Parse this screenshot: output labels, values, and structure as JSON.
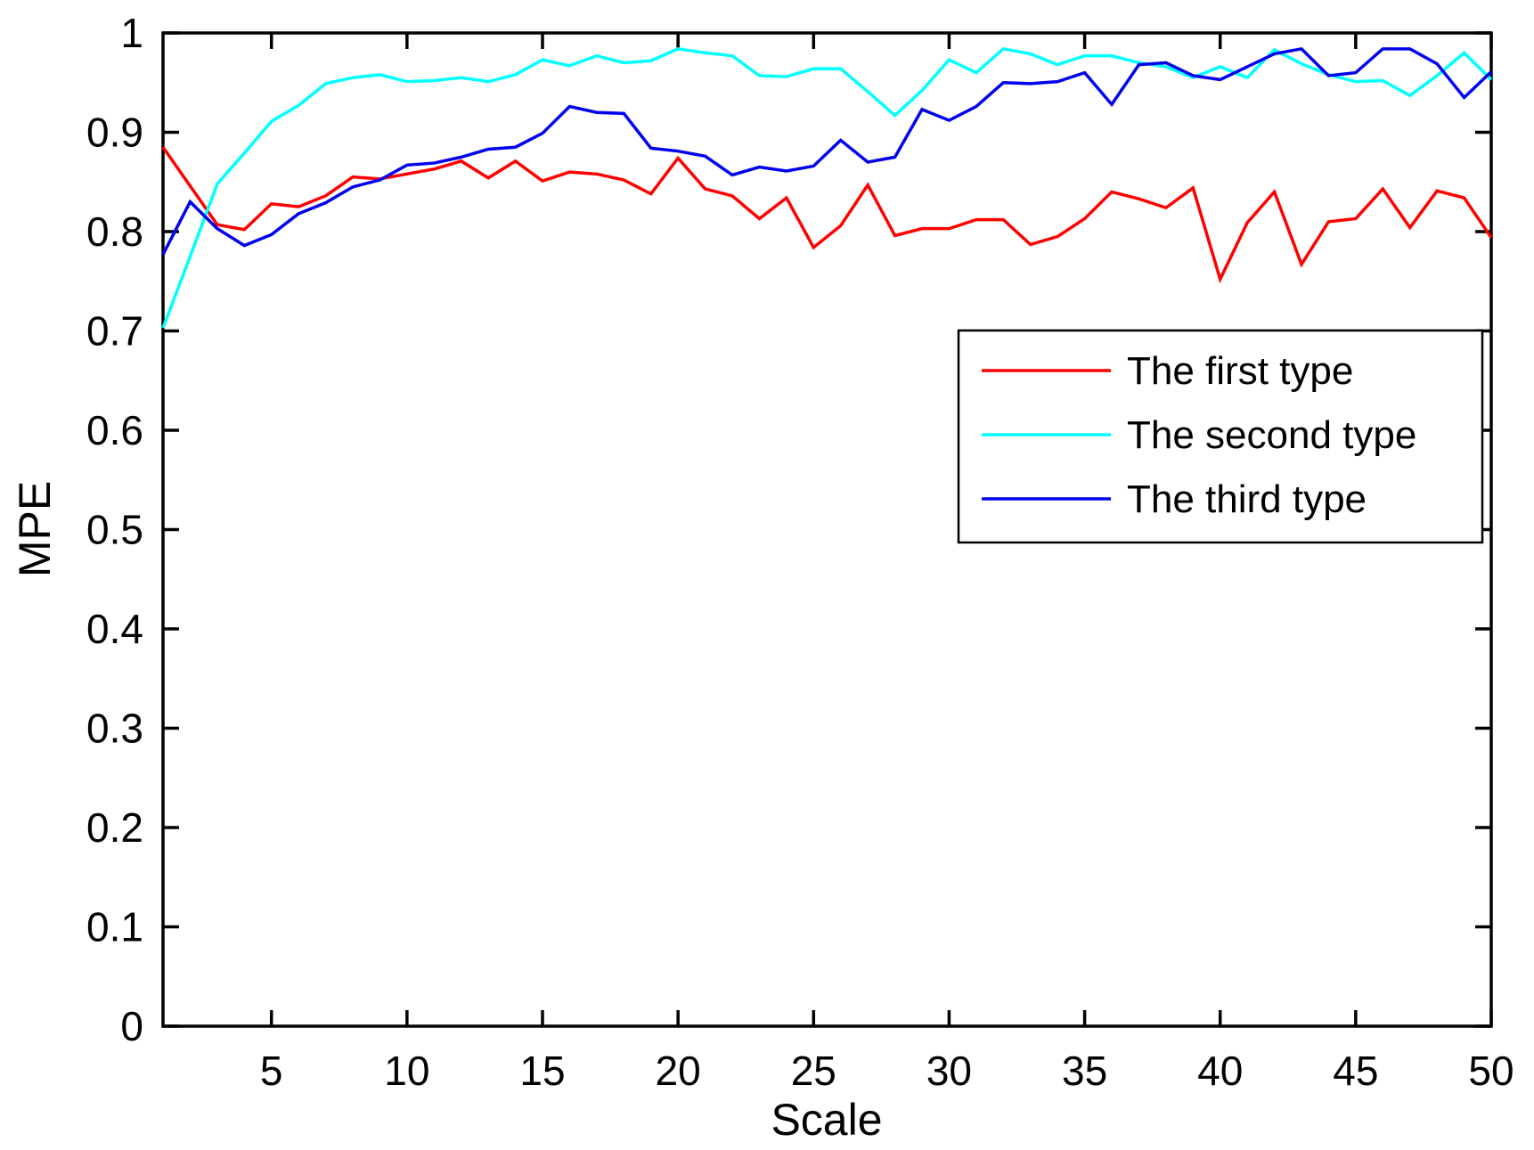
{
  "chart_data": {
    "type": "line",
    "title": "",
    "xlabel": "Scale",
    "ylabel": "MPE",
    "xlim": [
      1,
      50
    ],
    "ylim": [
      0,
      1
    ],
    "grid": false,
    "legend_position": "upper right",
    "x_ticks": [
      5,
      10,
      15,
      20,
      25,
      30,
      35,
      40,
      45,
      50
    ],
    "y_ticks": [
      0,
      0.1,
      0.2,
      0.3,
      0.4,
      0.5,
      0.6,
      0.7,
      0.8,
      0.9,
      1
    ],
    "y_tick_labels": [
      "0",
      "0.1",
      "0.2",
      "0.3",
      "0.4",
      "0.5",
      "0.6",
      "0.7",
      "0.8",
      "0.9",
      "1"
    ],
    "x": [
      1,
      2,
      3,
      4,
      5,
      6,
      7,
      8,
      9,
      10,
      11,
      12,
      13,
      14,
      15,
      16,
      17,
      18,
      19,
      20,
      21,
      22,
      23,
      24,
      25,
      26,
      27,
      28,
      29,
      30,
      31,
      32,
      33,
      34,
      35,
      36,
      37,
      38,
      39,
      40,
      41,
      42,
      43,
      44,
      45,
      46,
      47,
      48,
      49,
      50
    ],
    "series": [
      {
        "name": "The first type",
        "color": "#ff0000",
        "values": [
          0.885,
          0.846,
          0.807,
          0.802,
          0.828,
          0.825,
          0.836,
          0.855,
          0.853,
          0.858,
          0.863,
          0.871,
          0.854,
          0.871,
          0.851,
          0.86,
          0.858,
          0.852,
          0.838,
          0.874,
          0.843,
          0.836,
          0.813,
          0.834,
          0.784,
          0.806,
          0.847,
          0.796,
          0.803,
          0.803,
          0.812,
          0.812,
          0.787,
          0.795,
          0.813,
          0.84,
          0.833,
          0.824,
          0.844,
          0.752,
          0.809,
          0.84,
          0.767,
          0.81,
          0.813,
          0.843,
          0.804,
          0.841,
          0.834,
          0.794
        ]
      },
      {
        "name": "The second type",
        "color": "#00ffff",
        "values": [
          0.703,
          0.775,
          0.848,
          0.879,
          0.911,
          0.927,
          0.949,
          0.955,
          0.958,
          0.951,
          0.952,
          0.955,
          0.951,
          0.958,
          0.973,
          0.967,
          0.977,
          0.97,
          0.972,
          0.984,
          0.98,
          0.977,
          0.957,
          0.956,
          0.964,
          0.964,
          0.941,
          0.917,
          0.942,
          0.973,
          0.96,
          0.984,
          0.979,
          0.968,
          0.977,
          0.977,
          0.97,
          0.966,
          0.955,
          0.966,
          0.955,
          0.983,
          0.969,
          0.958,
          0.951,
          0.952,
          0.937,
          0.957,
          0.98,
          0.953
        ]
      },
      {
        "name": "The third type",
        "color": "#0000ee",
        "values": [
          0.777,
          0.83,
          0.803,
          0.786,
          0.797,
          0.818,
          0.829,
          0.845,
          0.852,
          0.867,
          0.869,
          0.875,
          0.883,
          0.885,
          0.899,
          0.926,
          0.92,
          0.919,
          0.884,
          0.881,
          0.876,
          0.857,
          0.865,
          0.861,
          0.866,
          0.892,
          0.87,
          0.875,
          0.923,
          0.912,
          0.926,
          0.95,
          0.949,
          0.951,
          0.96,
          0.928,
          0.968,
          0.97,
          0.957,
          0.953,
          0.966,
          0.979,
          0.984,
          0.957,
          0.96,
          0.984,
          0.984,
          0.969,
          0.935,
          0.961
        ]
      }
    ]
  }
}
